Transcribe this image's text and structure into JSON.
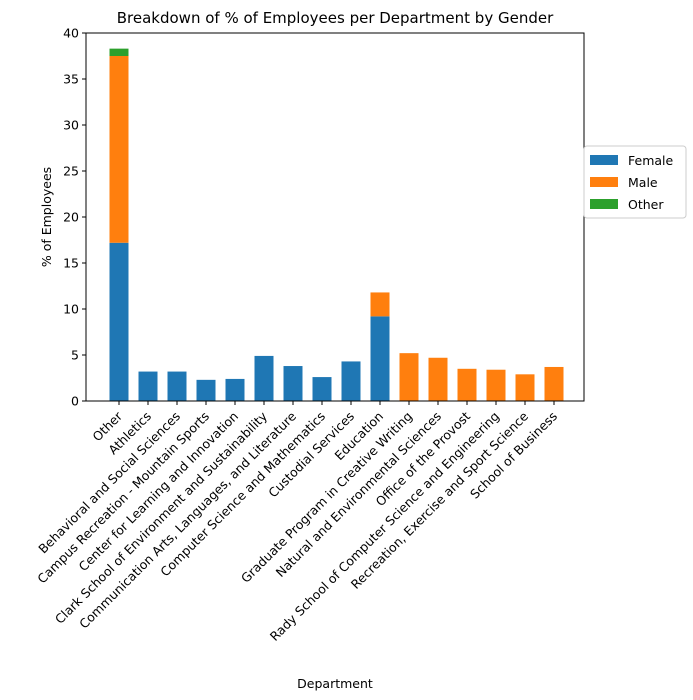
{
  "chart_data": {
    "type": "bar",
    "stacked": true,
    "title": "Breakdown of % of Employees per Department by Gender",
    "xlabel": "Department",
    "ylabel": "% of Employees",
    "ylim": [
      0,
      40
    ],
    "yticks": [
      0,
      5,
      10,
      15,
      20,
      25,
      30,
      35,
      40
    ],
    "grid": false,
    "legend_position": "right",
    "categories": [
      "Other",
      "Athletics",
      "Behavioral and Social Sciences",
      "Campus Recreation - Mountain Sports",
      "Center for Learning and Innovation",
      "Clark School of Environment and Sustainability",
      "Communication Arts, Languages, and Literature",
      "Computer Science and Mathematics",
      "Custodial Services",
      "Education",
      "Graduate Program in Creative Writing",
      "Natural and Environmental Sciences",
      "Office of the Provost",
      "Rady School of Computer Science and Engineering",
      "Recreation, Exercise and Sport Science",
      "School of Business"
    ],
    "series": [
      {
        "name": "Female",
        "color": "#1f77b4",
        "values": [
          17.2,
          3.2,
          3.2,
          2.3,
          2.4,
          4.9,
          3.8,
          2.6,
          4.3,
          9.2,
          0,
          0,
          0,
          0,
          0,
          0
        ]
      },
      {
        "name": "Male",
        "color": "#ff7f0e",
        "values": [
          20.3,
          0,
          0,
          0,
          0,
          0,
          0,
          0,
          0,
          2.6,
          5.2,
          4.7,
          3.5,
          3.4,
          2.9,
          3.7
        ]
      },
      {
        "name": "Other",
        "color": "#2ca02c",
        "values": [
          0.8,
          0,
          0,
          0,
          0,
          0,
          0,
          0,
          0,
          0,
          0,
          0,
          0,
          0,
          0,
          0
        ]
      }
    ]
  }
}
